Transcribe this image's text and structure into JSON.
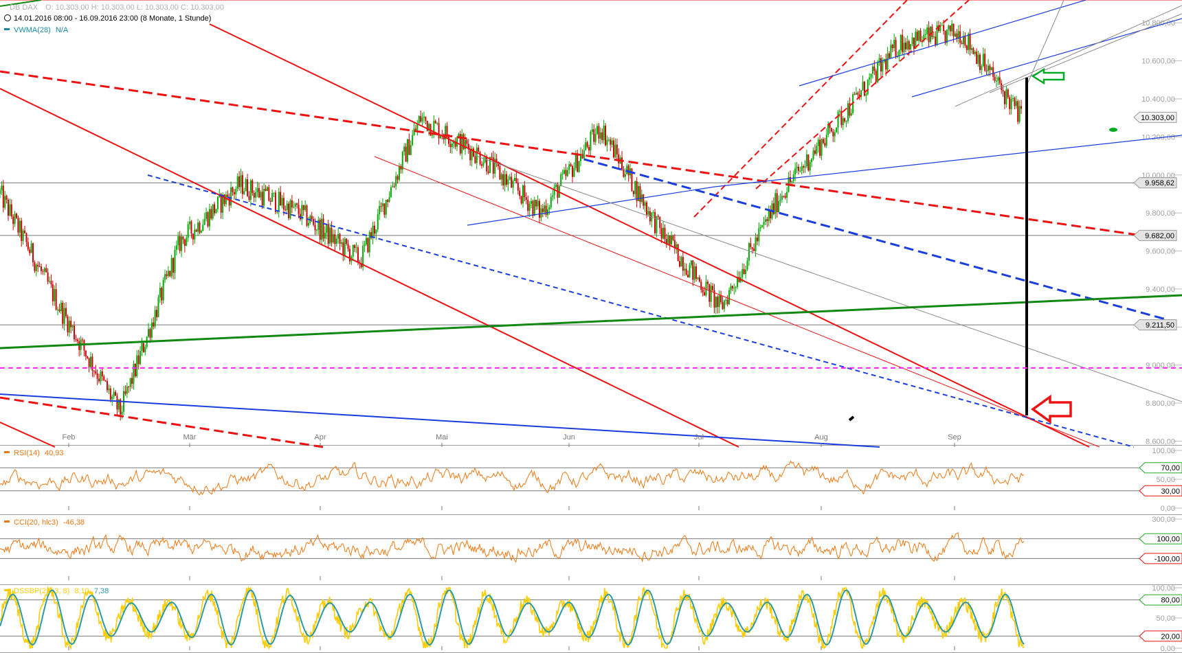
{
  "header": {
    "instrument": "DB DAX",
    "ohlc": "O: 10.303,00  H: 10.303,00  L: 10.303,00  C: 10.303,00",
    "period": "14.01.2016 08:00 - 16.09.2016 23:00 (8 Monate, 1 Stunde)",
    "vwma": "VWMA(28)",
    "vwma_value": "N/A"
  },
  "colors": {
    "up": "#00aa00",
    "down": "#cc0000",
    "red_line": "#ee1111",
    "blue_line": "#1a3de0",
    "green_line": "#118811",
    "magenta": "#ff22ff",
    "rsi": "#ee7711",
    "cci": "#ee7711",
    "dss_yellow": "#ffcc00",
    "dss_teal": "#2a9aa6",
    "arrow_green": "#00aa22",
    "arrow_red": "#ee1111"
  },
  "chart_data": [
    {
      "type": "line",
      "title": "DB DAX",
      "x_labels": [
        "Feb",
        "Mär",
        "Apr",
        "Mai",
        "Jun",
        "Jul",
        "Aug",
        "Sep"
      ],
      "y_ticks": [
        "10.800,00",
        "10.600,00",
        "10.400,00",
        "10.200,00",
        "10.000,00",
        "9.800,00",
        "9.600,00",
        "9.400,00",
        "9.200,00",
        "9.000,00",
        "8.800,00",
        "8.600,00"
      ],
      "ylim": [
        8580,
        10920
      ],
      "x": [
        "Jan",
        "Feb",
        "Feb",
        "Feb",
        "Mär",
        "Mär",
        "Apr",
        "Apr",
        "Mai",
        "Mai",
        "Jun",
        "Jun",
        "Jul",
        "Jul",
        "Aug",
        "Aug",
        "Sep",
        "Sep"
      ],
      "approx_close": [
        9900,
        9300,
        8750,
        9650,
        9950,
        9800,
        9550,
        10300,
        10100,
        9800,
        10250,
        9700,
        9300,
        9900,
        10300,
        10700,
        10750,
        10303
      ],
      "horizontal_levels": [
        {
          "label": "9.958,62",
          "value": 9958.62
        },
        {
          "label": "9.682,00",
          "value": 9682
        },
        {
          "label": "9.211,50",
          "value": 9211.5
        }
      ],
      "magenta_level": 8985,
      "last_price_label": "10.303,00",
      "last_price": 10303
    },
    {
      "type": "line",
      "title": "RSI(14)",
      "value_label": "40,93",
      "y_ticks": [
        "100,00",
        "50,00",
        "0,00"
      ],
      "levels": [
        {
          "label": "70,00",
          "value": 70
        },
        {
          "label": "30,00",
          "value": 30
        }
      ],
      "ylim": [
        0,
        100
      ]
    },
    {
      "type": "line",
      "title": "CCI(20, hlc3)",
      "value_label": "-46,38",
      "y_ticks": [
        "300,00"
      ],
      "levels": [
        {
          "label": "100,00",
          "value": 100
        },
        {
          "label": "-100,00",
          "value": -100
        }
      ],
      "ylim": [
        -300,
        300
      ]
    },
    {
      "type": "line",
      "title": "DSSBP(21, 3, 8)",
      "value_label": "8,10",
      "value_label2": "7,38",
      "y_ticks": [
        "100,00",
        "50,00",
        "0,00"
      ],
      "levels": [
        {
          "label": "80,00",
          "value": 80
        },
        {
          "label": "20,00",
          "value": 20
        }
      ],
      "ylim": [
        0,
        100
      ]
    }
  ]
}
